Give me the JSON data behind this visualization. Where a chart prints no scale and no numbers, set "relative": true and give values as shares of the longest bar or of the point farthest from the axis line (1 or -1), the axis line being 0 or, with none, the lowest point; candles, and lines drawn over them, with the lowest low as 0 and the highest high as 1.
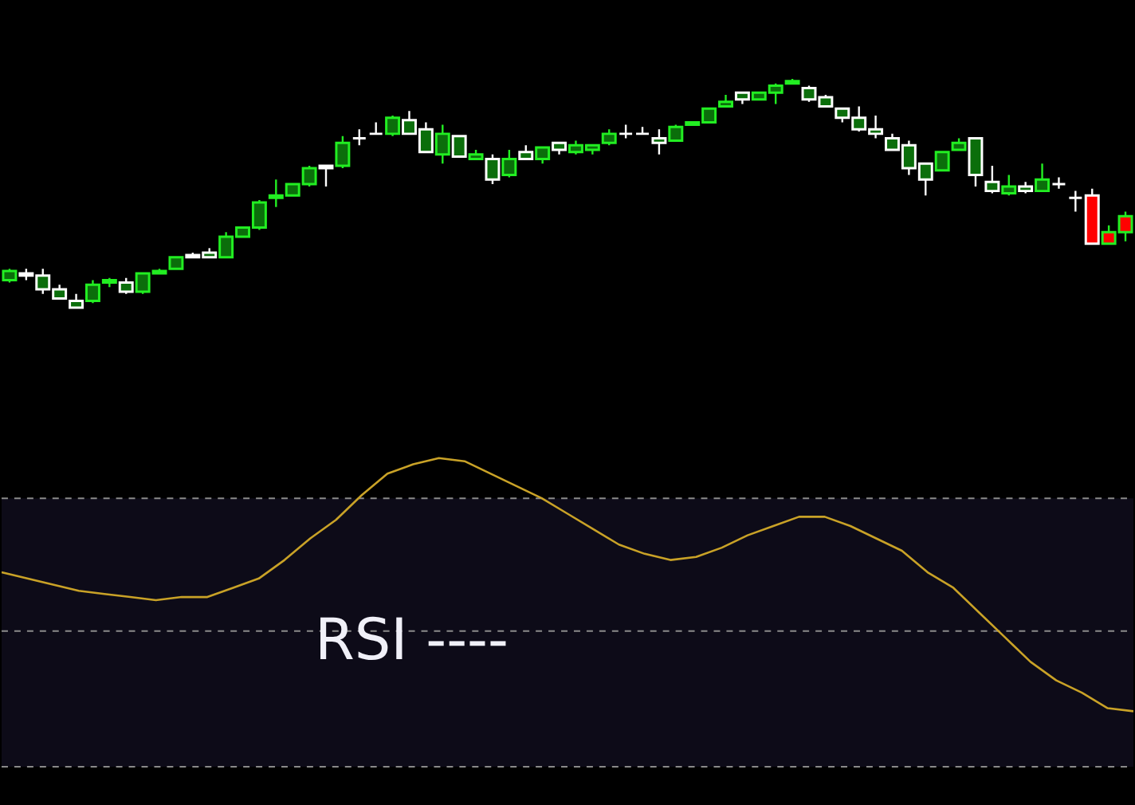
{
  "chart_data": [
    {
      "type": "candlestick",
      "relative": true,
      "tick_labels": false,
      "categories": [
        null,
        null,
        null,
        null,
        null,
        null,
        null,
        null,
        null,
        null,
        null,
        null,
        null,
        null,
        null,
        null,
        null,
        null,
        null,
        null,
        null,
        null,
        null,
        null,
        null,
        null,
        null,
        null,
        null,
        null,
        null,
        null,
        null,
        null,
        null,
        null,
        null,
        null,
        null,
        null,
        null,
        null,
        null,
        null,
        null,
        null,
        null,
        null,
        null,
        null,
        null,
        null,
        null,
        null,
        null,
        null,
        null,
        null,
        null,
        null,
        null,
        null,
        null,
        null,
        null,
        null,
        null,
        null
      ],
      "ohlc": [
        [
          0.12,
          0.17,
          0.11,
          0.16
        ],
        [
          0.15,
          0.17,
          0.12,
          0.14
        ],
        [
          0.14,
          0.17,
          0.06,
          0.08
        ],
        [
          0.08,
          0.1,
          0.04,
          0.04
        ],
        [
          0.03,
          0.06,
          0,
          0
        ],
        [
          0.03,
          0.12,
          0.02,
          0.1
        ],
        [
          0.11,
          0.13,
          0.09,
          0.12
        ],
        [
          0.11,
          0.13,
          0.06,
          0.07
        ],
        [
          0.07,
          0.15,
          0.06,
          0.15
        ],
        [
          0.15,
          0.17,
          0.15,
          0.16
        ],
        [
          0.17,
          0.22,
          0.17,
          0.22
        ],
        [
          0.23,
          0.24,
          0.22,
          0.22
        ],
        [
          0.24,
          0.26,
          0.22,
          0.22
        ],
        [
          0.22,
          0.33,
          0.22,
          0.31
        ],
        [
          0.31,
          0.35,
          0.31,
          0.35
        ],
        [
          0.35,
          0.47,
          0.34,
          0.46
        ],
        [
          0.48,
          0.56,
          0.44,
          0.49
        ],
        [
          0.49,
          0.54,
          0.49,
          0.54
        ],
        [
          0.54,
          0.62,
          0.53,
          0.61
        ],
        [
          0.62,
          0.62,
          0.53,
          0.61
        ],
        [
          0.62,
          0.75,
          0.61,
          0.72
        ],
        [
          0.74,
          0.78,
          0.71,
          0.74
        ],
        [
          0.76,
          0.81,
          0.76,
          0.76
        ],
        [
          0.76,
          0.84,
          0.75,
          0.83
        ],
        [
          0.82,
          0.86,
          0.76,
          0.76
        ],
        [
          0.78,
          0.81,
          0.68,
          0.68
        ],
        [
          0.67,
          0.8,
          0.63,
          0.76
        ],
        [
          0.75,
          0.75,
          0.66,
          0.66
        ],
        [
          0.65,
          0.69,
          0.65,
          0.67
        ],
        [
          0.65,
          0.67,
          0.54,
          0.56
        ],
        [
          0.58,
          0.69,
          0.57,
          0.65
        ],
        [
          0.68,
          0.71,
          0.65,
          0.65
        ],
        [
          0.65,
          0.7,
          0.63,
          0.7
        ],
        [
          0.72,
          0.72,
          0.67,
          0.69
        ],
        [
          0.68,
          0.73,
          0.67,
          0.71
        ],
        [
          0.69,
          0.71,
          0.67,
          0.71
        ],
        [
          0.72,
          0.78,
          0.71,
          0.76
        ],
        [
          0.76,
          0.8,
          0.74,
          0.76
        ],
        [
          0.76,
          0.79,
          0.76,
          0.76
        ],
        [
          0.74,
          0.78,
          0.67,
          0.72
        ],
        [
          0.73,
          0.8,
          0.73,
          0.79
        ],
        [
          0.8,
          0.81,
          0.8,
          0.81
        ],
        [
          0.81,
          0.87,
          0.81,
          0.87
        ],
        [
          0.88,
          0.93,
          0.88,
          0.9
        ],
        [
          0.94,
          0.94,
          0.89,
          0.91
        ],
        [
          0.91,
          0.94,
          0.91,
          0.94
        ],
        [
          0.94,
          0.98,
          0.89,
          0.97
        ],
        [
          0.98,
          1,
          0.98,
          0.99
        ],
        [
          0.96,
          0.97,
          0.9,
          0.91
        ],
        [
          0.92,
          0.93,
          0.88,
          0.88
        ],
        [
          0.87,
          0.87,
          0.81,
          0.83
        ],
        [
          0.83,
          0.88,
          0.77,
          0.78
        ],
        [
          0.78,
          0.84,
          0.74,
          0.76
        ],
        [
          0.74,
          0.76,
          0.69,
          0.69
        ],
        [
          0.71,
          0.73,
          0.58,
          0.61
        ],
        [
          0.63,
          0.63,
          0.49,
          0.56
        ],
        [
          0.6,
          0.68,
          0.6,
          0.68
        ],
        [
          0.69,
          0.74,
          0.69,
          0.72
        ],
        [
          0.74,
          0.74,
          0.53,
          0.58
        ],
        [
          0.55,
          0.62,
          0.5,
          0.51
        ],
        [
          0.5,
          0.58,
          0.49,
          0.53
        ],
        [
          0.53,
          0.55,
          0.5,
          0.51
        ],
        [
          0.51,
          0.63,
          0.51,
          0.56
        ],
        [
          0.54,
          0.57,
          0.52,
          0.54
        ],
        [
          0.48,
          0.51,
          0.42,
          0.48
        ],
        [
          0.49,
          0.52,
          0.28,
          0.28
        ],
        [
          0.28,
          0.36,
          0.28,
          0.33
        ],
        [
          0.33,
          0.42,
          0.29,
          0.4
        ]
      ],
      "colors": [
        "#0b6e0b",
        "#0b6e0b",
        "#0b6e0b",
        "#0b6e0b",
        "#0b6e0b",
        "#0b6e0b",
        "#0b6e0b",
        "#0b6e0b",
        "#0b6e0b",
        "#0b6e0b",
        "#0b6e0b",
        "#0b6e0b",
        "#0b6e0b",
        "#0b6e0b",
        "#0b6e0b",
        "#0b6e0b",
        "#0b6e0b",
        "#0b6e0b",
        "#0b6e0b",
        "#0b6e0b",
        "#0b6e0b",
        "#ffffff",
        "#ffffff",
        "#0b6e0b",
        "#0b6e0b",
        "#0b6e0b",
        "#0b6e0b",
        "#0b6e0b",
        "#0b6e0b",
        "#0b6e0b",
        "#0b6e0b",
        "#0b6e0b",
        "#0b6e0b",
        "#0b6e0b",
        "#0b6e0b",
        "#0b6e0b",
        "#0b6e0b",
        "#ffffff",
        "#ffffff",
        "#0b6e0b",
        "#0b6e0b",
        "#0b6e0b",
        "#0b6e0b",
        "#0b6e0b",
        "#0b6e0b",
        "#0b6e0b",
        "#0b6e0b",
        "#0b6e0b",
        "#0b6e0b",
        "#0b6e0b",
        "#0b6e0b",
        "#0b6e0b",
        "#0b6e0b",
        "#0b6e0b",
        "#0b6e0b",
        "#0b6e0b",
        "#0b6e0b",
        "#0b6e0b",
        "#0b6e0b",
        "#0b6e0b",
        "#0b6e0b",
        "#0b6e0b",
        "#0b6e0b",
        "#ffffff",
        "#ffffff",
        "#ff0000",
        "#ff0000",
        "#ff0000"
      ]
    },
    {
      "type": "line",
      "relative": true,
      "tick_labels": false,
      "line_style": "solid",
      "categories": [
        null,
        null,
        null,
        null,
        null,
        null,
        null,
        null,
        null,
        null,
        null,
        null,
        null,
        null,
        null,
        null,
        null,
        null,
        null,
        null,
        null,
        null,
        null,
        null,
        null,
        null,
        null,
        null,
        null,
        null,
        null,
        null,
        null,
        null,
        null,
        null,
        null,
        null,
        null,
        null,
        null,
        null,
        null,
        null,
        null
      ],
      "series": [
        {
          "color": "#c9a227",
          "values": [
            0.63,
            0.61,
            0.59,
            0.57,
            0.56,
            0.55,
            0.54,
            0.55,
            0.55,
            0.58,
            0.61,
            0.67,
            0.74,
            0.8,
            0.88,
            0.95,
            0.98,
            1,
            0.99,
            0.95,
            0.91,
            0.87,
            0.82,
            0.77,
            0.72,
            0.69,
            0.67,
            0.68,
            0.71,
            0.75,
            0.78,
            0.81,
            0.81,
            0.78,
            0.74,
            0.7,
            0.63,
            0.58,
            0.5,
            0.42,
            0.34,
            0.28,
            0.24,
            0.19,
            0.18
          ]
        }
      ],
      "bands": [
        {
          "axis": "y",
          "from": 0,
          "to": 0.87,
          "color": "#0d0b18"
        }
      ],
      "ref_lines": [
        {
          "axis": "y",
          "value": 0.87,
          "color": "#8a8a8a",
          "line_style": "dashed"
        },
        {
          "axis": "y",
          "value": 0.44,
          "color": "#8a8a8a",
          "line_style": "dashed"
        },
        {
          "axis": "y",
          "value": 0,
          "color": "#8a8a8a",
          "line_style": "dashed"
        }
      ],
      "annotations": [
        "RSI ----"
      ]
    }
  ]
}
